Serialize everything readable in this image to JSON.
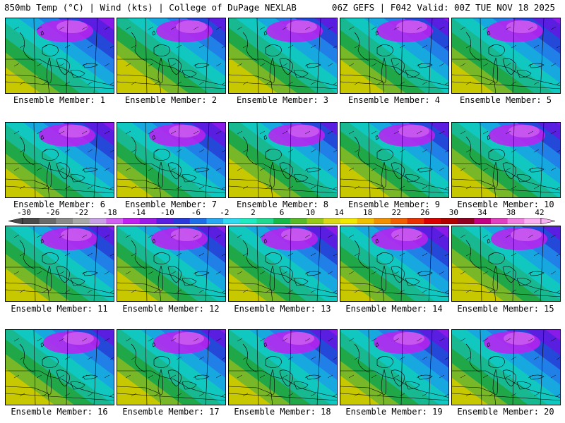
{
  "header": {
    "left": "850mb Temp (°C) | Wind (kts) | College of DuPage NEXLAB",
    "right": "06Z GEFS | F042 Valid: 00Z TUE NOV 18 2025"
  },
  "members": [
    {
      "label": "Ensemble Member: 1"
    },
    {
      "label": "Ensemble Member: 2"
    },
    {
      "label": "Ensemble Member: 3"
    },
    {
      "label": "Ensemble Member: 4"
    },
    {
      "label": "Ensemble Member: 5"
    },
    {
      "label": "Ensemble Member: 6"
    },
    {
      "label": "Ensemble Member: 7"
    },
    {
      "label": "Ensemble Member: 8"
    },
    {
      "label": "Ensemble Member: 9"
    },
    {
      "label": "Ensemble Member: 10"
    },
    {
      "label": "Ensemble Member: 11"
    },
    {
      "label": "Ensemble Member: 12"
    },
    {
      "label": "Ensemble Member: 13"
    },
    {
      "label": "Ensemble Member: 14"
    },
    {
      "label": "Ensemble Member: 15"
    },
    {
      "label": "Ensemble Member: 16"
    },
    {
      "label": "Ensemble Member: 17"
    },
    {
      "label": "Ensemble Member: 18"
    },
    {
      "label": "Ensemble Member: 19"
    },
    {
      "label": "Ensemble Member: 20"
    }
  ],
  "colorbar": {
    "ticks": [
      "-30",
      "-26",
      "-22",
      "-18",
      "-14",
      "-10",
      "-6",
      "-2",
      "2",
      "6",
      "10",
      "14",
      "18",
      "22",
      "26",
      "30",
      "34",
      "38",
      "42"
    ],
    "colors": [
      "#4a4a4a",
      "#6a6a6a",
      "#8a8a8a",
      "#a8a8a8",
      "#c8a0e6",
      "#d060f0",
      "#c020f0",
      "#9a1ae8",
      "#5a1ee0",
      "#2a3ad8",
      "#1e6ee8",
      "#28a8f0",
      "#30d8f0",
      "#20e8c0",
      "#20d890",
      "#18b848",
      "#58b828",
      "#98c818",
      "#d8d818",
      "#f0e800",
      "#f0c000",
      "#f09000",
      "#f06000",
      "#e83000",
      "#d80000",
      "#b00000",
      "#900020",
      "#c00080",
      "#e040c0",
      "#f080e0",
      "#f8b0f0"
    ]
  }
}
